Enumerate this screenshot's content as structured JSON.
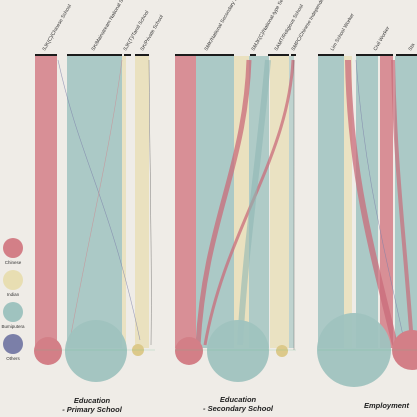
{
  "colors": {
    "chinese": "#d37f87",
    "indian": "#e8deb2",
    "bumiputera": "#9fc3bf",
    "others": "#7b7fa8",
    "background": "#efece7",
    "edge": "#1b1b1b"
  },
  "legend": [
    {
      "key": "chinese",
      "label": "Chinese"
    },
    {
      "key": "indian",
      "label": "Indian"
    },
    {
      "key": "bumiputera",
      "label": "Bumiputera"
    },
    {
      "key": "others",
      "label": "Others"
    }
  ],
  "stages": [
    {
      "title_line1": "Education",
      "title_line2": "- Primary School",
      "columns": [
        "SJK(C)/Chinese School",
        "SK/Mainstream National School",
        "SJK(T)/Tamil School",
        "SK/Private School"
      ]
    },
    {
      "title_line1": "Education",
      "title_line2": "- Secondary School",
      "columns": [
        "SMK/National Secondary School",
        "SMJK(C)/National-type Secondary S",
        "SAMT/Religious School",
        "SMPC/Chinese Independence School"
      ]
    },
    {
      "title_line1": "Employment",
      "title_line2": "",
      "columns": [
        "Lim School Worker",
        "Civil Worker",
        "Sta"
      ]
    }
  ]
}
